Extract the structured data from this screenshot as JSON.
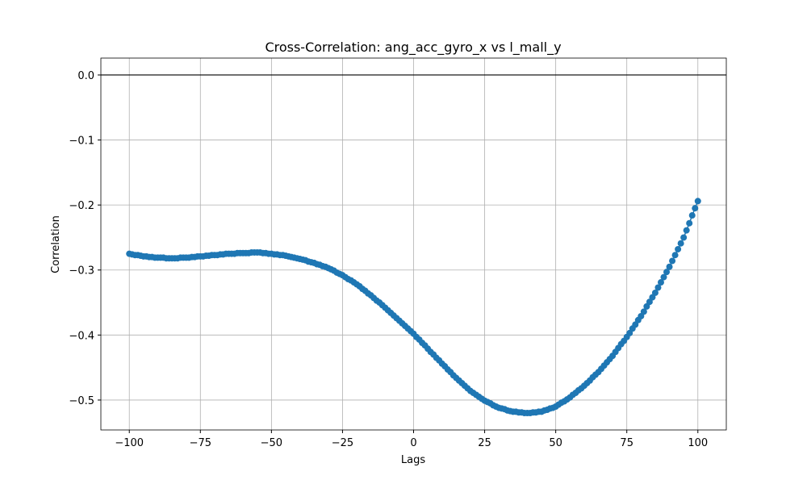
{
  "chart_data": {
    "type": "line",
    "title": "Cross-Correlation: ang_acc_gyro_x vs l_mall_y",
    "x_label": "Lags",
    "y_label": "Correlation",
    "x": [
      -100,
      -99,
      -98,
      -97,
      -96,
      -95,
      -94,
      -93,
      -92,
      -91,
      -90,
      -89,
      -88,
      -87,
      -86,
      -85,
      -84,
      -83,
      -82,
      -81,
      -80,
      -79,
      -78,
      -77,
      -76,
      -75,
      -74,
      -73,
      -72,
      -71,
      -70,
      -69,
      -68,
      -67,
      -66,
      -65,
      -64,
      -63,
      -62,
      -61,
      -60,
      -59,
      -58,
      -57,
      -56,
      -55,
      -54,
      -53,
      -52,
      -51,
      -50,
      -49,
      -48,
      -47,
      -46,
      -45,
      -44,
      -43,
      -42,
      -41,
      -40,
      -39,
      -38,
      -37,
      -36,
      -35,
      -34,
      -33,
      -32,
      -31,
      -30,
      -29,
      -28,
      -27,
      -26,
      -25,
      -24,
      -23,
      -22,
      -21,
      -20,
      -19,
      -18,
      -17,
      -16,
      -15,
      -14,
      -13,
      -12,
      -11,
      -10,
      -9,
      -8,
      -7,
      -6,
      -5,
      -4,
      -3,
      -2,
      -1,
      0,
      1,
      2,
      3,
      4,
      5,
      6,
      7,
      8,
      9,
      10,
      11,
      12,
      13,
      14,
      15,
      16,
      17,
      18,
      19,
      20,
      21,
      22,
      23,
      24,
      25,
      26,
      27,
      28,
      29,
      30,
      31,
      32,
      33,
      34,
      35,
      36,
      37,
      38,
      39,
      40,
      41,
      42,
      43,
      44,
      45,
      46,
      47,
      48,
      49,
      50,
      51,
      52,
      53,
      54,
      55,
      56,
      57,
      58,
      59,
      60,
      61,
      62,
      63,
      64,
      65,
      66,
      67,
      68,
      69,
      70,
      71,
      72,
      73,
      74,
      75,
      76,
      77,
      78,
      79,
      80,
      81,
      82,
      83,
      84,
      85,
      86,
      87,
      88,
      89,
      90,
      91,
      92,
      93,
      94,
      95,
      96,
      97,
      98,
      99,
      100
    ],
    "series": [
      {
        "color": "#1f77b4",
        "values": [
          -0.275,
          -0.276,
          -0.277,
          -0.277,
          -0.278,
          -0.279,
          -0.279,
          -0.28,
          -0.28,
          -0.281,
          -0.281,
          -0.281,
          -0.281,
          -0.282,
          -0.282,
          -0.282,
          -0.282,
          -0.282,
          -0.281,
          -0.281,
          -0.281,
          -0.281,
          -0.28,
          -0.28,
          -0.279,
          -0.279,
          -0.279,
          -0.278,
          -0.278,
          -0.277,
          -0.277,
          -0.277,
          -0.276,
          -0.276,
          -0.275,
          -0.275,
          -0.275,
          -0.275,
          -0.274,
          -0.274,
          -0.274,
          -0.274,
          -0.274,
          -0.273,
          -0.273,
          -0.273,
          -0.273,
          -0.274,
          -0.274,
          -0.275,
          -0.275,
          -0.276,
          -0.276,
          -0.277,
          -0.277,
          -0.278,
          -0.279,
          -0.28,
          -0.281,
          -0.282,
          -0.283,
          -0.284,
          -0.285,
          -0.287,
          -0.288,
          -0.289,
          -0.291,
          -0.292,
          -0.294,
          -0.295,
          -0.297,
          -0.299,
          -0.301,
          -0.304,
          -0.306,
          -0.308,
          -0.311,
          -0.314,
          -0.316,
          -0.319,
          -0.322,
          -0.325,
          -0.329,
          -0.332,
          -0.336,
          -0.339,
          -0.343,
          -0.347,
          -0.35,
          -0.354,
          -0.358,
          -0.362,
          -0.366,
          -0.37,
          -0.374,
          -0.378,
          -0.382,
          -0.386,
          -0.39,
          -0.394,
          -0.398,
          -0.403,
          -0.407,
          -0.412,
          -0.416,
          -0.421,
          -0.426,
          -0.43,
          -0.435,
          -0.439,
          -0.444,
          -0.448,
          -0.453,
          -0.457,
          -0.462,
          -0.466,
          -0.47,
          -0.474,
          -0.478,
          -0.482,
          -0.486,
          -0.489,
          -0.492,
          -0.495,
          -0.498,
          -0.501,
          -0.503,
          -0.505,
          -0.508,
          -0.51,
          -0.512,
          -0.513,
          -0.514,
          -0.516,
          -0.517,
          -0.518,
          -0.518,
          -0.519,
          -0.519,
          -0.52,
          -0.52,
          -0.52,
          -0.519,
          -0.519,
          -0.518,
          -0.518,
          -0.516,
          -0.515,
          -0.513,
          -0.512,
          -0.51,
          -0.507,
          -0.504,
          -0.502,
          -0.499,
          -0.496,
          -0.492,
          -0.489,
          -0.485,
          -0.482,
          -0.478,
          -0.474,
          -0.47,
          -0.465,
          -0.461,
          -0.457,
          -0.452,
          -0.447,
          -0.442,
          -0.437,
          -0.432,
          -0.426,
          -0.42,
          -0.414,
          -0.409,
          -0.403,
          -0.397,
          -0.39,
          -0.384,
          -0.377,
          -0.371,
          -0.364,
          -0.356,
          -0.349,
          -0.342,
          -0.335,
          -0.327,
          -0.319,
          -0.311,
          -0.303,
          -0.295,
          -0.286,
          -0.277,
          -0.268,
          -0.259,
          -0.25,
          -0.239,
          -0.228,
          -0.216,
          -0.205,
          -0.194
        ]
      }
    ],
    "hline": 0,
    "xlim": [
      -110,
      110
    ],
    "ylim": [
      -0.546,
      0.026
    ],
    "xticks": [
      {
        "value": -100,
        "label": "−100"
      },
      {
        "value": -75,
        "label": "−75"
      },
      {
        "value": -50,
        "label": "−50"
      },
      {
        "value": -25,
        "label": "−25"
      },
      0,
      25,
      50,
      75,
      100
    ],
    "yticks": [
      {
        "value": 0,
        "label": "0.0"
      },
      {
        "value": -0.1,
        "label": "−0.1"
      },
      {
        "value": -0.2,
        "label": "−0.2"
      },
      {
        "value": -0.3,
        "label": "−0.3"
      },
      {
        "value": -0.4,
        "label": "−0.4"
      },
      {
        "value": -0.5,
        "label": "−0.5"
      }
    ],
    "grid": true
  }
}
